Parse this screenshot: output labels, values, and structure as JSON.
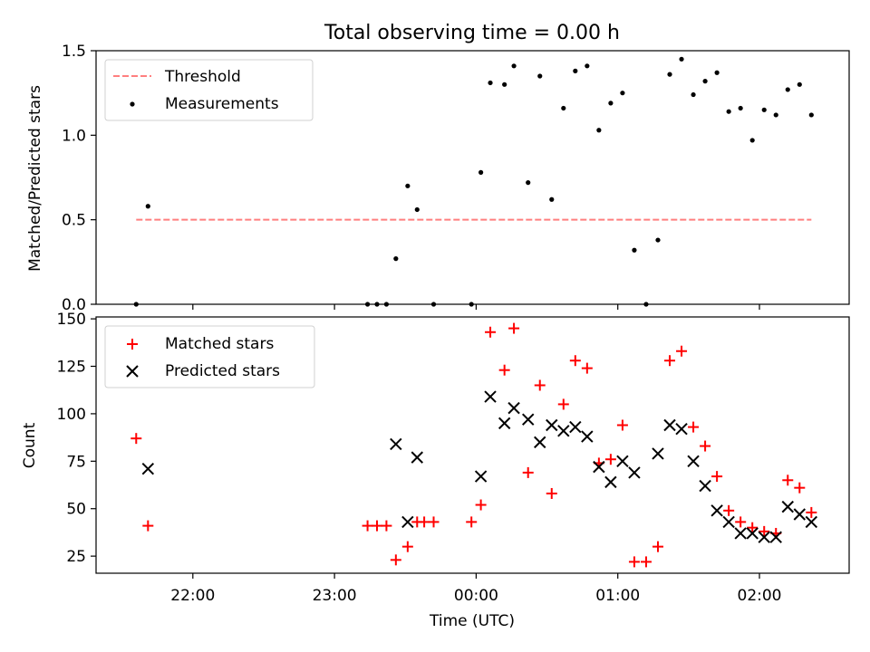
{
  "chart_data": [
    {
      "type": "scatter",
      "title": "Total observing time = 0.00 h",
      "xlabel": "",
      "ylabel": "Matched/Predicted stars",
      "xlim": [
        "21:19",
        "02:38"
      ],
      "ylim": [
        0,
        1.5
      ],
      "yticks": [
        "0.0",
        "0.5",
        "1.0",
        "1.5"
      ],
      "grid": false,
      "legend_position": "top-left",
      "series": [
        {
          "name": "Threshold",
          "kind": "dashed-line",
          "color": "#ff7f7f",
          "x": [
            "21:36",
            "02:22"
          ],
          "y": [
            0.5,
            0.5
          ]
        },
        {
          "name": "Measurements",
          "kind": "points",
          "color": "#000000",
          "x": [
            "21:36",
            "21:41",
            "23:14",
            "23:18",
            "23:22",
            "23:26",
            "23:31",
            "23:35",
            "23:42",
            "23:58",
            "00:02",
            "00:06",
            "00:12",
            "00:16",
            "00:22",
            "00:27",
            "00:32",
            "00:37",
            "00:42",
            "00:47",
            "00:52",
            "00:57",
            "01:02",
            "01:07",
            "01:12",
            "01:17",
            "01:22",
            "01:27",
            "01:32",
            "01:37",
            "01:42",
            "01:47",
            "01:52",
            "01:57",
            "02:02",
            "02:07",
            "02:12",
            "02:17",
            "02:22"
          ],
          "y": [
            0.0,
            0.58,
            0.0,
            0.0,
            0.0,
            0.27,
            0.7,
            0.56,
            0.0,
            0.0,
            0.78,
            1.31,
            1.3,
            1.41,
            0.72,
            1.35,
            0.62,
            1.16,
            1.38,
            1.41,
            1.03,
            1.19,
            1.25,
            0.32,
            0.0,
            0.38,
            1.36,
            1.45,
            1.24,
            1.32,
            1.37,
            1.14,
            1.16,
            0.97,
            1.15,
            1.12,
            1.27,
            1.3,
            1.12
          ]
        }
      ]
    },
    {
      "type": "scatter",
      "title": "",
      "xlabel": "Time (UTC)",
      "ylabel": "Count",
      "xlim": [
        "21:19",
        "02:38"
      ],
      "xticks": [
        "22:00",
        "23:00",
        "00:00",
        "01:00",
        "02:00"
      ],
      "ylim": [
        16,
        151
      ],
      "yticks": [
        "25",
        "50",
        "75",
        "100",
        "125",
        "150"
      ],
      "grid": false,
      "legend_position": "top-left",
      "series": [
        {
          "name": "Matched stars",
          "marker": "plus",
          "color": "#ff0000",
          "x": [
            "21:36",
            "21:41",
            "23:14",
            "23:18",
            "23:22",
            "23:26",
            "23:31",
            "23:35",
            "23:38",
            "23:42",
            "23:58",
            "00:02",
            "00:06",
            "00:12",
            "00:16",
            "00:22",
            "00:27",
            "00:32",
            "00:37",
            "00:42",
            "00:47",
            "00:52",
            "00:57",
            "01:02",
            "01:07",
            "01:12",
            "01:17",
            "01:22",
            "01:27",
            "01:32",
            "01:37",
            "01:42",
            "01:47",
            "01:52",
            "01:57",
            "02:02",
            "02:07",
            "02:12",
            "02:17",
            "02:22"
          ],
          "y": [
            87,
            41,
            41,
            41,
            41,
            23,
            30,
            43,
            43,
            43,
            43,
            52,
            143,
            123,
            145,
            69,
            115,
            58,
            105,
            128,
            124,
            74,
            76,
            94,
            22,
            22,
            30,
            128,
            133,
            93,
            83,
            67,
            49,
            43,
            40,
            38,
            37,
            65,
            61,
            48
          ]
        },
        {
          "name": "Predicted stars",
          "marker": "x",
          "color": "#000000",
          "x": [
            "21:41",
            "23:26",
            "23:31",
            "23:35",
            "00:02",
            "00:06",
            "00:12",
            "00:16",
            "00:22",
            "00:27",
            "00:32",
            "00:37",
            "00:42",
            "00:47",
            "00:52",
            "00:57",
            "01:02",
            "01:07",
            "01:17",
            "01:22",
            "01:27",
            "01:32",
            "01:37",
            "01:42",
            "01:47",
            "01:52",
            "01:57",
            "02:02",
            "02:07",
            "02:12",
            "02:17",
            "02:22"
          ],
          "y": [
            71,
            84,
            43,
            77,
            67,
            109,
            95,
            103,
            97,
            85,
            94,
            91,
            93,
            88,
            72,
            64,
            75,
            69,
            79,
            94,
            92,
            75,
            62,
            49,
            43,
            37,
            37,
            35,
            35,
            51,
            47,
            43
          ]
        }
      ]
    }
  ]
}
